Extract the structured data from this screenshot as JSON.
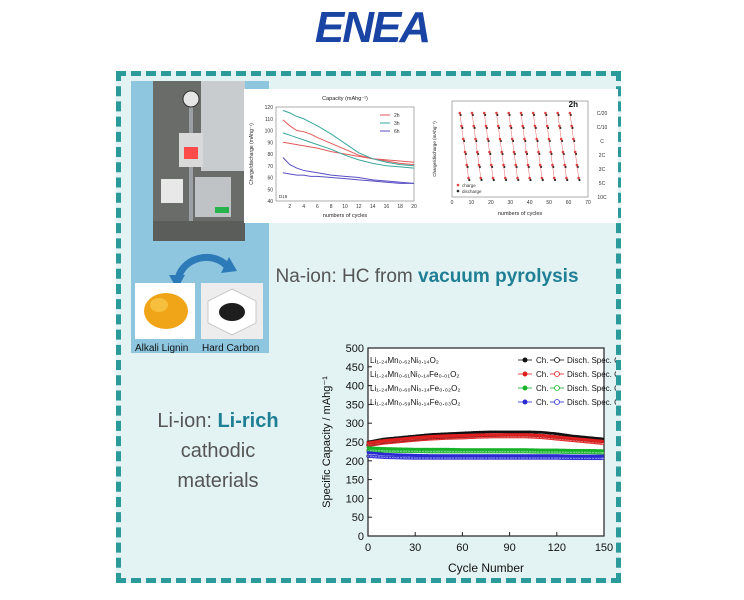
{
  "logo": {
    "text": "ENEA"
  },
  "photo_labels": {
    "left": "Alkali Lignin",
    "right": "Hard Carbon"
  },
  "na_title": {
    "prefix": "Na-ion: HC from ",
    "bold": "vacuum pyrolysis"
  },
  "li_title": {
    "prefix": "Li-ion: ",
    "bold": "Li-rich",
    "rest1": "cathodic",
    "rest2": "materials"
  },
  "chart_data": [
    {
      "type": "line",
      "title": "Capacity (mAhg⁻¹)",
      "xlabel": "numbers of cycles",
      "ylabel": "Charge/discharge (mAhg⁻¹)",
      "xlim": [
        0,
        20
      ],
      "ylim": [
        40,
        120
      ],
      "xticks": [
        2,
        4,
        6,
        8,
        10,
        12,
        14,
        16,
        18,
        20
      ],
      "yticks": [
        40,
        50,
        60,
        70,
        80,
        90,
        100,
        110,
        120
      ],
      "corner_label": "D19",
      "series": [
        {
          "name": "2h",
          "color": "#e05a5a",
          "x": [
            1,
            2,
            3,
            4,
            5,
            6,
            8,
            10,
            12,
            14,
            16,
            18,
            20
          ],
          "y": [
            109,
            104,
            100,
            99,
            97,
            94,
            89,
            84,
            79,
            76,
            74,
            72,
            71
          ]
        },
        {
          "name": "2h",
          "color": "#e05a5a",
          "x": [
            1,
            2,
            3,
            4,
            5,
            6,
            8,
            10,
            12,
            14,
            16,
            18,
            20
          ],
          "y": [
            90,
            89,
            88,
            87,
            86,
            85,
            82,
            80,
            78,
            76,
            75,
            74,
            73
          ]
        },
        {
          "name": "3h",
          "color": "#3aa89c",
          "x": [
            1,
            2,
            3,
            4,
            5,
            6,
            8,
            10,
            12,
            14,
            16,
            18,
            20
          ],
          "y": [
            117,
            115,
            112,
            110,
            107,
            104,
            97,
            89,
            81,
            76,
            73,
            71,
            70
          ]
        },
        {
          "name": "3h",
          "color": "#3aa89c",
          "x": [
            1,
            2,
            3,
            4,
            5,
            6,
            8,
            10,
            12,
            14,
            16,
            18,
            20
          ],
          "y": [
            98,
            96,
            94,
            92,
            90,
            88,
            84,
            79,
            75,
            72,
            70,
            69,
            68
          ]
        },
        {
          "name": "6h",
          "color": "#5a4fc4",
          "x": [
            1,
            2,
            3,
            4,
            5,
            6,
            8,
            10,
            12,
            14,
            16,
            18,
            20
          ],
          "y": [
            77,
            71,
            68,
            66,
            65,
            64,
            62,
            61,
            60,
            58,
            57,
            56,
            55
          ]
        },
        {
          "name": "6h",
          "color": "#5a4fc4",
          "x": [
            1,
            2,
            3,
            4,
            5,
            6,
            8,
            10,
            12,
            14,
            16,
            18,
            20
          ],
          "y": [
            64,
            63,
            62,
            62,
            61,
            61,
            60,
            59,
            58,
            57,
            56,
            55,
            55
          ]
        }
      ]
    },
    {
      "type": "scatter",
      "title": "2h",
      "xlabel": "numbers of cycles",
      "ylabel": "Charge/discharge (mAhg⁻¹)",
      "xlim": [
        0,
        70
      ],
      "xticks": [
        0,
        10,
        20,
        30,
        40,
        50,
        60,
        70
      ],
      "rate_labels": [
        "C/20",
        "C/10",
        "C",
        "2C",
        "3C",
        "5C",
        "10C"
      ],
      "series": [
        {
          "name": "charge",
          "color": "#e04040"
        },
        {
          "name": "discharge",
          "color": "#2b2b2b"
        }
      ]
    },
    {
      "type": "scatter",
      "xlabel": "Cycle Number",
      "ylabel": "Specific Capacity / mAhg⁻¹",
      "xlim": [
        0,
        150
      ],
      "ylim": [
        0,
        500
      ],
      "xticks": [
        0,
        30,
        60,
        90,
        120,
        150
      ],
      "yticks": [
        0,
        50,
        100,
        150,
        200,
        250,
        300,
        350,
        400,
        450,
        500
      ],
      "legend_ch": "Ch.",
      "legend_dis": "Disch. Spec. Cap.",
      "series": [
        {
          "name": "Li₁.₂₄Mn₀.₆₂Ni₀.₁₄O₂",
          "color": "#111111",
          "x": [
            0,
            10,
            20,
            30,
            40,
            50,
            60,
            70,
            80,
            90,
            100,
            110,
            120,
            130,
            140,
            150
          ],
          "ch": [
            250,
            258,
            262,
            266,
            270,
            272,
            274,
            276,
            277,
            277,
            277,
            276,
            272,
            266,
            262,
            258
          ],
          "dis": [
            245,
            252,
            256,
            260,
            264,
            266,
            268,
            270,
            271,
            272,
            272,
            270,
            266,
            262,
            258,
            254
          ]
        },
        {
          "name": "Li₁.₂₄Mn₀.₆₁Ni₀.₁₄Fe₀.₀₁O₂",
          "color": "#e02020",
          "x": [
            0,
            10,
            20,
            30,
            40,
            50,
            60,
            70,
            80,
            90,
            100,
            110,
            120,
            130,
            140,
            150
          ],
          "ch": [
            248,
            254,
            258,
            262,
            265,
            267,
            268,
            269,
            270,
            270,
            270,
            268,
            264,
            260,
            256,
            252
          ],
          "dis": [
            244,
            250,
            254,
            258,
            261,
            263,
            264,
            266,
            267,
            267,
            267,
            265,
            261,
            257,
            253,
            249
          ]
        },
        {
          "name": "Li₁.₂₄Mn₀.₆₀Ni₀.₁₄Fe₀.₀₂O₂",
          "color": "#17b32a",
          "x": [
            0,
            10,
            20,
            30,
            40,
            50,
            60,
            70,
            80,
            90,
            100,
            110,
            120,
            130,
            140,
            150
          ],
          "ch": [
            235,
            233,
            232,
            231,
            231,
            231,
            230,
            230,
            230,
            230,
            230,
            229,
            229,
            228,
            228,
            227
          ],
          "dis": [
            230,
            229,
            228,
            228,
            227,
            227,
            227,
            227,
            227,
            227,
            227,
            226,
            226,
            225,
            225,
            224
          ]
        },
        {
          "name": "Li₁.₂₄Mn₀.₅₉Ni₀.₁₄Fe₀.₀₃O₂",
          "color": "#2b2bd4",
          "x": [
            0,
            10,
            20,
            30,
            40,
            50,
            60,
            70,
            80,
            90,
            100,
            110,
            120,
            130,
            140,
            150
          ],
          "ch": [
            222,
            218,
            216,
            215,
            214,
            214,
            214,
            214,
            214,
            214,
            214,
            214,
            214,
            213,
            213,
            213
          ],
          "dis": [
            215,
            212,
            211,
            210,
            210,
            210,
            210,
            210,
            210,
            210,
            210,
            210,
            210,
            209,
            209,
            209
          ]
        }
      ]
    }
  ]
}
